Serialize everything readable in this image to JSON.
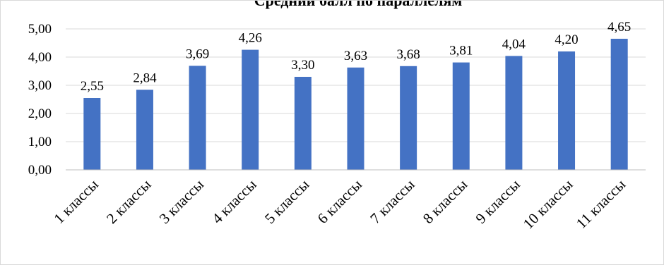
{
  "chart_data": {
    "type": "bar",
    "title": "Средний балл по параллелям",
    "categories": [
      "1 классы",
      "2 классы",
      "3 классы",
      "4 классы",
      "5 классы",
      "6 классы",
      "7 классы",
      "8 классы",
      "9 классы",
      "10 классы",
      "11 классы"
    ],
    "series": [
      {
        "values": [
          2.55,
          2.84,
          3.69,
          4.26,
          3.3,
          3.63,
          3.68,
          3.81,
          4.04,
          4.2,
          4.65
        ]
      }
    ],
    "data_labels": [
      "2,55",
      "2,84",
      "3,69",
      "4,26",
      "3,30",
      "3,63",
      "3,68",
      "3,81",
      "4,04",
      "4,20",
      "4,65"
    ],
    "y_ticks": [
      0,
      1,
      2,
      3,
      4,
      5
    ],
    "y_tick_labels": [
      "0,00",
      "1,00",
      "2,00",
      "3,00",
      "4,00",
      "5,00"
    ],
    "ylim": [
      0,
      5
    ],
    "grid": true,
    "legend": "none",
    "xlabel": "",
    "ylabel": "",
    "colors": {
      "bar": "#4472c4",
      "grid": "#d9d9d9",
      "axis": "#bfbfbf"
    }
  }
}
